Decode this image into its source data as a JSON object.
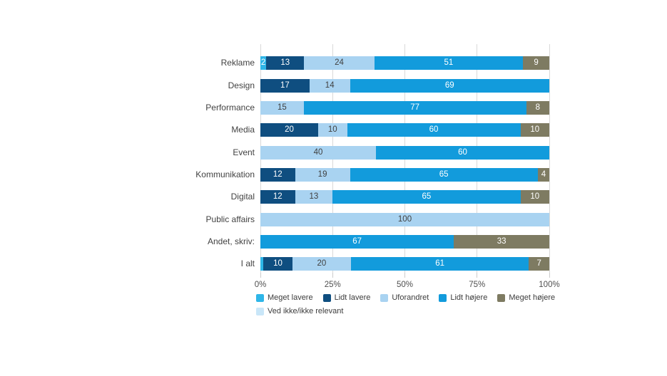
{
  "chart_data": {
    "type": "bar",
    "orientation": "horizontal",
    "stacked": true,
    "title": "",
    "xlabel": "",
    "ylabel": "",
    "xlim": [
      0,
      100
    ],
    "grid": true,
    "legend_position": "bottom",
    "series": [
      {
        "name": "Meget lavere",
        "color": "#2eb6e8",
        "text_color": "#ffffff"
      },
      {
        "name": "Lidt lavere",
        "color": "#0f4e80",
        "text_color": "#ffffff"
      },
      {
        "name": "Uforandret",
        "color": "#a9d3f1",
        "text_color": "#404040"
      },
      {
        "name": "Lidt højere",
        "color": "#129bdc",
        "text_color": "#ffffff"
      },
      {
        "name": "Meget højere",
        "color": "#7e7b62",
        "text_color": "#ffffff"
      },
      {
        "name": "Ved ikke/ikke relevant",
        "color": "#c9e6f8",
        "text_color": "#404040"
      }
    ],
    "categories": [
      "Reklame",
      "Design",
      "Performance",
      "Media",
      "Event",
      "Kommunikation",
      "Digital",
      "Public affairs",
      "Andet, skriv:",
      "I alt"
    ],
    "rows": [
      {
        "category": "Reklame",
        "segments": [
          {
            "name": "Meget lavere",
            "value": 2
          },
          {
            "name": "Lidt lavere",
            "value": 13
          },
          {
            "name": "Uforandret",
            "value": 24
          },
          {
            "name": "Lidt højere",
            "value": 51
          },
          {
            "name": "Meget højere",
            "value": 9
          }
        ]
      },
      {
        "category": "Design",
        "segments": [
          {
            "name": "Lidt lavere",
            "value": 17
          },
          {
            "name": "Uforandret",
            "value": 14
          },
          {
            "name": "Lidt højere",
            "value": 69
          }
        ]
      },
      {
        "category": "Performance",
        "segments": [
          {
            "name": "Uforandret",
            "value": 15
          },
          {
            "name": "Lidt højere",
            "value": 77
          },
          {
            "name": "Meget højere",
            "value": 8
          }
        ]
      },
      {
        "category": "Media",
        "segments": [
          {
            "name": "Lidt lavere",
            "value": 20
          },
          {
            "name": "Uforandret",
            "value": 10
          },
          {
            "name": "Lidt højere",
            "value": 60
          },
          {
            "name": "Meget højere",
            "value": 10
          }
        ]
      },
      {
        "category": "Event",
        "segments": [
          {
            "name": "Uforandret",
            "value": 40
          },
          {
            "name": "Lidt højere",
            "value": 60
          }
        ]
      },
      {
        "category": "Kommunikation",
        "segments": [
          {
            "name": "Lidt lavere",
            "value": 12
          },
          {
            "name": "Uforandret",
            "value": 19
          },
          {
            "name": "Lidt højere",
            "value": 65
          },
          {
            "name": "Meget højere",
            "value": 4
          }
        ]
      },
      {
        "category": "Digital",
        "segments": [
          {
            "name": "Lidt lavere",
            "value": 12
          },
          {
            "name": "Uforandret",
            "value": 13
          },
          {
            "name": "Lidt højere",
            "value": 65
          },
          {
            "name": "Meget højere",
            "value": 10
          }
        ]
      },
      {
        "category": "Public affairs",
        "segments": [
          {
            "name": "Uforandret",
            "value": 100
          }
        ]
      },
      {
        "category": "Andet, skriv:",
        "segments": [
          {
            "name": "Lidt højere",
            "value": 67
          },
          {
            "name": "Meget højere",
            "value": 33
          }
        ]
      },
      {
        "category": "I alt",
        "segments": [
          {
            "name": "Meget lavere",
            "value": 1,
            "show_label": false
          },
          {
            "name": "Lidt lavere",
            "value": 10
          },
          {
            "name": "Uforandret",
            "value": 20
          },
          {
            "name": "Lidt højere",
            "value": 61
          },
          {
            "name": "Meget højere",
            "value": 7
          }
        ]
      }
    ],
    "x_ticks": [
      {
        "label": "0%",
        "pos": 0
      },
      {
        "label": "25%",
        "pos": 25
      },
      {
        "label": "50%",
        "pos": 50
      },
      {
        "label": "75%",
        "pos": 75
      },
      {
        "label": "100%",
        "pos": 100
      }
    ],
    "legend_rows": [
      [
        "Meget lavere",
        "Lidt lavere",
        "Uforandret",
        "Lidt højere",
        "Meget højere"
      ],
      [
        "Ved ikke/ikke relevant"
      ]
    ],
    "gridline_color": "#d9d9d9"
  }
}
